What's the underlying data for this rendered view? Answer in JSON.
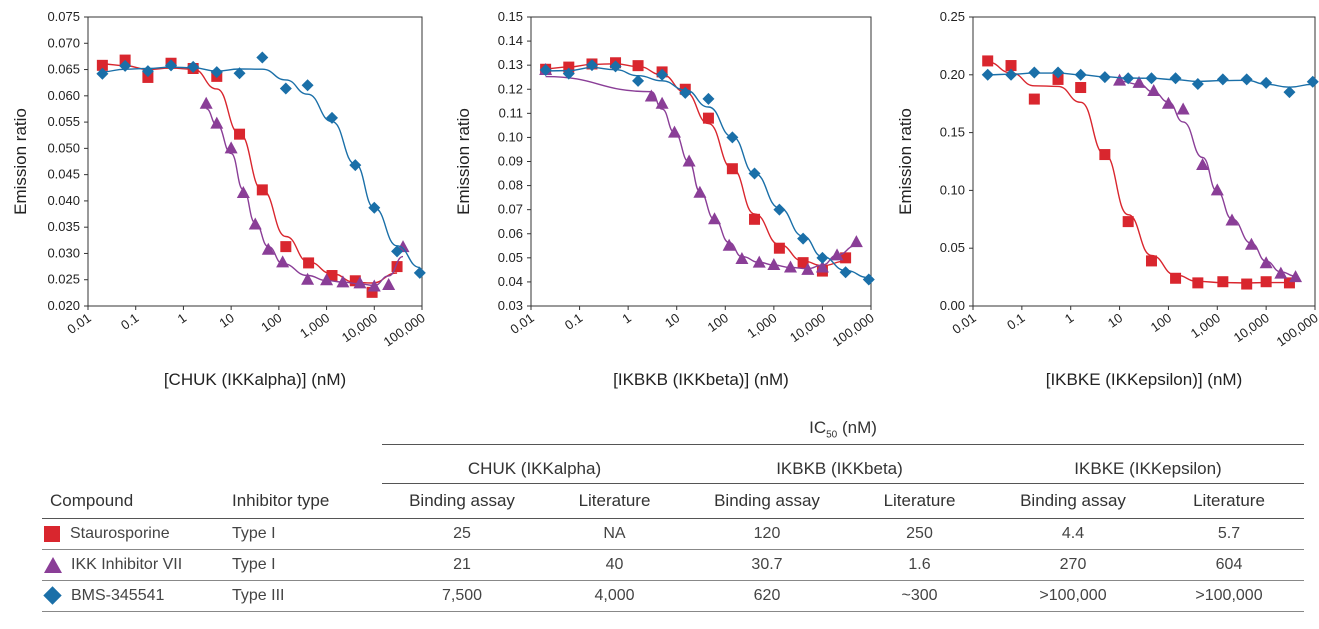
{
  "chart_data": [
    {
      "type": "scatter",
      "xlabel": "[CHUK (IKKalpha)] (nM)",
      "ylabel": "Emission ratio",
      "xscale": "log",
      "xlim": [
        0.01,
        100000
      ],
      "ylim": [
        0.02,
        0.075
      ],
      "yticks": [
        "0.020",
        "0.025",
        "0.030",
        "0.035",
        "0.040",
        "0.045",
        "0.050",
        "0.055",
        "0.060",
        "0.065",
        "0.070",
        "0.075"
      ],
      "xticks": [
        "0.01",
        "0.1",
        "1",
        "10",
        "100",
        "1,000",
        "10,000",
        "100,000"
      ],
      "series": [
        {
          "name": "Staurosporine",
          "marker": "square",
          "color": "#d9262e",
          "x": [
            0.02,
            0.06,
            0.18,
            0.55,
            1.6,
            5,
            15,
            45,
            140,
            420,
            1300,
            4000,
            9000,
            30000
          ],
          "y": [
            0.0658,
            0.0668,
            0.0635,
            0.0662,
            0.0652,
            0.0637,
            0.0527,
            0.0421,
            0.0313,
            0.0282,
            0.0258,
            0.0248,
            0.0226,
            0.0275
          ]
        },
        {
          "name": "IKK Inhibitor VII",
          "marker": "triangle",
          "color": "#8a3e97",
          "x": [
            3,
            5,
            10,
            18,
            32,
            60,
            120,
            400,
            1000,
            2200,
            5000,
            10000,
            20000,
            40000
          ],
          "y": [
            0.0585,
            0.0547,
            0.05,
            0.0415,
            0.0355,
            0.0307,
            0.0283,
            0.025,
            0.0249,
            0.0245,
            0.0243,
            0.0237,
            0.024,
            0.0312
          ]
        },
        {
          "name": "BMS-345541",
          "marker": "diamond",
          "color": "#1a6fa8",
          "x": [
            0.02,
            0.06,
            0.18,
            0.55,
            1.6,
            5,
            15,
            45,
            140,
            400,
            1300,
            4000,
            10000,
            30000,
            90000
          ],
          "y": [
            0.0642,
            0.0657,
            0.0647,
            0.0658,
            0.0655,
            0.0645,
            0.0643,
            0.0673,
            0.0614,
            0.062,
            0.0558,
            0.0468,
            0.0387,
            0.0304,
            0.0263
          ]
        }
      ]
    },
    {
      "type": "scatter",
      "xlabel": "[IKBKB (IKKbeta)] (nM)",
      "ylabel": "Emission ratio",
      "xscale": "log",
      "xlim": [
        0.01,
        100000
      ],
      "ylim": [
        0.03,
        0.15
      ],
      "yticks": [
        "0.03",
        "0.04",
        "0.05",
        "0.06",
        "0.07",
        "0.08",
        "0.09",
        "0.10",
        "0.11",
        "0.12",
        "0.13",
        "0.14",
        "0.15"
      ],
      "xticks": [
        "0.01",
        "0.1",
        "1",
        "10",
        "100",
        "1,000",
        "10,000",
        "100,000"
      ],
      "series": [
        {
          "name": "Staurosporine",
          "marker": "square",
          "color": "#d9262e",
          "x": [
            0.02,
            0.06,
            0.18,
            0.55,
            1.6,
            5,
            15,
            45,
            140,
            400,
            1300,
            4000,
            10000,
            30000
          ],
          "y": [
            0.1283,
            0.1292,
            0.1305,
            0.131,
            0.1298,
            0.1272,
            0.12,
            0.108,
            0.087,
            0.066,
            0.054,
            0.048,
            0.0445,
            0.05
          ]
        },
        {
          "name": "IKK Inhibitor VII",
          "marker": "triangle",
          "color": "#8a3e97",
          "x": [
            0.02,
            3,
            5,
            9,
            18,
            30,
            60,
            120,
            220,
            500,
            1000,
            2200,
            5000,
            10000,
            20000,
            50000
          ],
          "y": [
            0.128,
            0.117,
            0.114,
            0.102,
            0.09,
            0.077,
            0.066,
            0.055,
            0.0495,
            0.048,
            0.047,
            0.046,
            0.045,
            0.046,
            0.051,
            0.0565
          ]
        },
        {
          "name": "BMS-345541",
          "marker": "diamond",
          "color": "#1a6fa8",
          "x": [
            0.02,
            0.06,
            0.18,
            0.55,
            1.6,
            5,
            15,
            45,
            140,
            400,
            1300,
            4000,
            10000,
            30000,
            90000
          ],
          "y": [
            0.128,
            0.1265,
            0.13,
            0.1295,
            0.1235,
            0.126,
            0.1185,
            0.116,
            0.1,
            0.085,
            0.07,
            0.058,
            0.05,
            0.044,
            0.041
          ]
        }
      ]
    },
    {
      "type": "scatter",
      "xlabel": "[IKBKE (IKKepsilon)] (nM)",
      "ylabel": "Emission ratio",
      "xscale": "log",
      "xlim": [
        0.01,
        100000
      ],
      "ylim": [
        0.0,
        0.25
      ],
      "yticks": [
        "0.00",
        "0.05",
        "0.10",
        "0.15",
        "0.20",
        "0.25"
      ],
      "xticks": [
        "0.01",
        "0.1",
        "1",
        "10",
        "100",
        "1,000",
        "10,000",
        "100,000"
      ],
      "series": [
        {
          "name": "Staurosporine",
          "marker": "square",
          "color": "#d9262e",
          "x": [
            0.02,
            0.06,
            0.18,
            0.55,
            1.6,
            5,
            15,
            45,
            140,
            400,
            1300,
            4000,
            10000,
            30000
          ],
          "y": [
            0.212,
            0.208,
            0.179,
            0.196,
            0.189,
            0.131,
            0.073,
            0.039,
            0.024,
            0.02,
            0.021,
            0.019,
            0.021,
            0.02
          ]
        },
        {
          "name": "IKK Inhibitor VII",
          "marker": "triangle",
          "color": "#8a3e97",
          "x": [
            10,
            25,
            50,
            100,
            200,
            500,
            1000,
            2000,
            5000,
            10000,
            20000,
            40000
          ],
          "y": [
            0.195,
            0.193,
            0.186,
            0.175,
            0.17,
            0.122,
            0.1,
            0.074,
            0.053,
            0.037,
            0.028,
            0.025
          ]
        },
        {
          "name": "BMS-345541",
          "marker": "diamond",
          "color": "#1a6fa8",
          "x": [
            0.02,
            0.06,
            0.18,
            0.55,
            1.6,
            5,
            15,
            45,
            140,
            400,
            1300,
            4000,
            10000,
            30000,
            90000
          ],
          "y": [
            0.2,
            0.2,
            0.202,
            0.202,
            0.2,
            0.198,
            0.197,
            0.197,
            0.197,
            0.192,
            0.196,
            0.196,
            0.193,
            0.185,
            0.194
          ]
        }
      ]
    }
  ],
  "table": {
    "ic50_header": "IC",
    "ic50_sub": "50",
    "ic50_unit": " (nM)",
    "groups": [
      "CHUK (IKKalpha)",
      "IKBKB (IKKbeta)",
      "IKBKE (IKKepsilon)"
    ],
    "columns": [
      "Compound",
      "Inhibitor type",
      "Binding assay",
      "Literature",
      "Binding assay",
      "Literature",
      "Binding assay",
      "Literature"
    ],
    "rows": [
      {
        "marker": "square",
        "compound": "Staurosporine",
        "type": "Type I",
        "values": [
          "25",
          "NA",
          "120",
          "250",
          "4.4",
          "5.7"
        ]
      },
      {
        "marker": "triangle",
        "compound": "IKK Inhibitor VII",
        "type": "Type I",
        "values": [
          "21",
          "40",
          "30.7",
          "1.6",
          "270",
          "604"
        ]
      },
      {
        "marker": "diamond",
        "compound": "BMS-345541",
        "type": "Type III",
        "values": [
          "7,500",
          "4,000",
          "620",
          "~300",
          ">100,000",
          ">100,000"
        ]
      }
    ]
  }
}
